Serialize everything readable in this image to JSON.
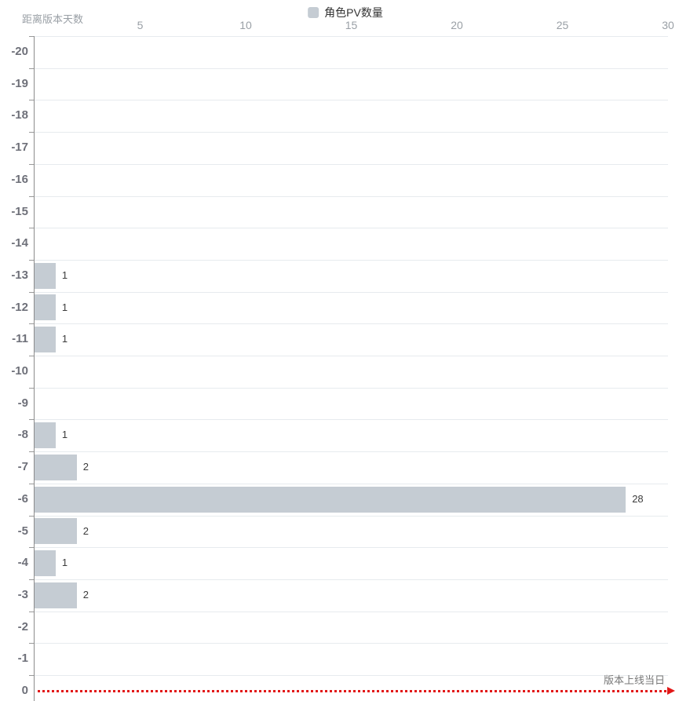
{
  "header": {
    "y_axis_title": "距离版本天数",
    "legend_label": "角色PV数量"
  },
  "chart_data": {
    "type": "bar",
    "orientation": "horizontal",
    "legend_entries": [
      "角色PV数量"
    ],
    "y_axis_title": "距离版本天数",
    "categories": [
      -20,
      -19,
      -18,
      -17,
      -16,
      -15,
      -14,
      -13,
      -12,
      -11,
      -10,
      -9,
      -8,
      -7,
      -6,
      -5,
      -4,
      -3,
      -2,
      -1,
      0
    ],
    "values": [
      0,
      0,
      0,
      0,
      0,
      0,
      0,
      1,
      1,
      1,
      0,
      0,
      1,
      2,
      28,
      2,
      1,
      2,
      0,
      0,
      0
    ],
    "x_ticks": [
      5,
      10,
      15,
      20,
      25,
      30
    ],
    "xlim": [
      0,
      30
    ],
    "grid": true,
    "legend_position": "top-center",
    "x_axis_position": "top",
    "bar_color": "#c5ccd3",
    "annotation": {
      "label": "版本上线当日",
      "category": 0,
      "color": "#e21717",
      "style": "dotted-line-arrow-right"
    }
  }
}
